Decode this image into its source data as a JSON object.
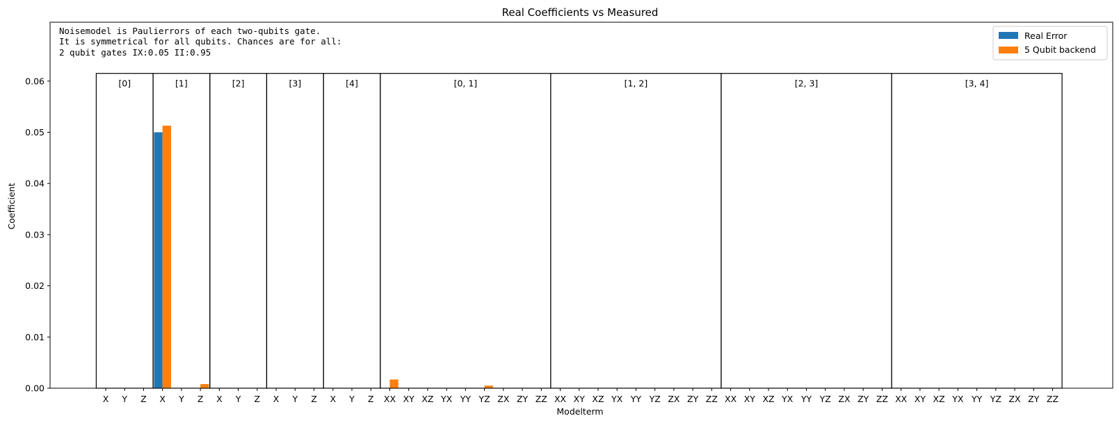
{
  "chart_data": {
    "type": "bar",
    "title": "Real Coefficients vs Measured",
    "xlabel": "Modelterm",
    "ylabel": "Coefficient",
    "ylim": [
      0,
      0.0715
    ],
    "yticks": [
      "0.00",
      "0.01",
      "0.02",
      "0.03",
      "0.04",
      "0.05",
      "0.06"
    ],
    "ytick_values": [
      0,
      0.01,
      0.02,
      0.03,
      0.04,
      0.05,
      0.06
    ],
    "categories": [
      "X",
      "Y",
      "Z",
      "X",
      "Y",
      "Z",
      "X",
      "Y",
      "Z",
      "X",
      "Y",
      "Z",
      "X",
      "Y",
      "Z",
      "XX",
      "XY",
      "XZ",
      "YX",
      "YY",
      "YZ",
      "ZX",
      "ZY",
      "ZZ",
      "XX",
      "XY",
      "XZ",
      "YX",
      "YY",
      "YZ",
      "ZX",
      "ZY",
      "ZZ",
      "XX",
      "XY",
      "XZ",
      "YX",
      "YY",
      "YZ",
      "ZX",
      "ZY",
      "ZZ",
      "XX",
      "XY",
      "XZ",
      "YX",
      "YY",
      "YZ",
      "ZX",
      "ZY",
      "ZZ"
    ],
    "groups": [
      {
        "label": "[0]",
        "start": 0,
        "end": 2
      },
      {
        "label": "[1]",
        "start": 3,
        "end": 5
      },
      {
        "label": "[2]",
        "start": 6,
        "end": 8
      },
      {
        "label": "[3]",
        "start": 9,
        "end": 11
      },
      {
        "label": "[4]",
        "start": 12,
        "end": 14
      },
      {
        "label": "[0, 1]",
        "start": 15,
        "end": 23
      },
      {
        "label": "[1, 2]",
        "start": 24,
        "end": 32
      },
      {
        "label": "[2, 3]",
        "start": 33,
        "end": 41
      },
      {
        "label": "[3, 4]",
        "start": 42,
        "end": 50
      }
    ],
    "group_box_top": 0.0615,
    "series": [
      {
        "name": "Real Error",
        "color": "#1f77b4",
        "values": [
          0,
          0,
          0,
          0.05,
          0,
          0,
          0,
          0,
          0,
          0,
          0,
          0,
          0,
          0,
          0,
          0,
          0,
          0,
          0,
          0,
          0,
          0,
          0,
          0,
          0,
          0,
          0,
          0,
          0,
          0,
          0,
          0,
          0,
          0,
          0,
          0,
          0,
          0,
          0,
          0,
          0,
          0,
          0,
          0,
          0,
          0,
          0,
          0,
          0,
          0,
          0
        ]
      },
      {
        "name": "5 Qubit backend",
        "color": "#ff7f0e",
        "values": [
          0,
          0,
          0,
          0.0513,
          0,
          0.0008,
          0,
          0,
          0,
          0,
          0,
          0,
          0,
          0,
          0,
          0.0017,
          0,
          0,
          0,
          0,
          0.0005,
          0,
          0,
          0,
          0,
          0,
          0,
          0,
          0,
          0,
          0,
          0,
          0,
          0,
          0,
          0,
          0,
          0,
          0,
          0,
          0,
          0,
          0,
          0,
          0,
          0,
          0,
          0,
          0,
          0,
          0
        ]
      }
    ],
    "annotation": [
      "Noisemodel is Paulierrors of each two-qubits gate.",
      "It is symmetrical for all qubits. Chances are for all:",
      "2 qubit gates IX:0.05   II:0.95"
    ],
    "legend_position": "top-right",
    "grid": false
  }
}
